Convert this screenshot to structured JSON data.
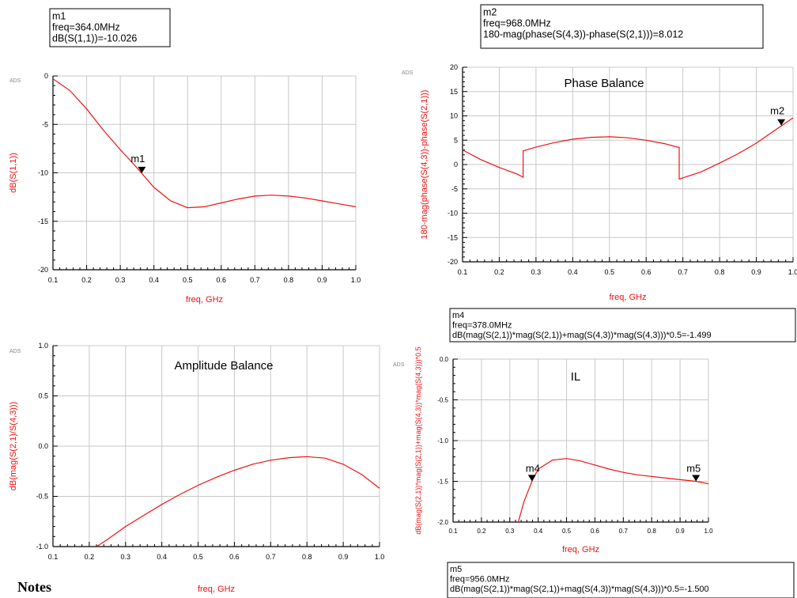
{
  "notes_heading": "Notes",
  "colors": {
    "trace": "#ee1111",
    "grid": "#c8c8c8",
    "axis": "#000000"
  },
  "chart_data": [
    {
      "id": "s11",
      "type": "line",
      "ads_tag": "ADS",
      "title": "",
      "xlabel": "freq, GHz",
      "ylabel": "dB(S(1,1))",
      "xlim": [
        0.1,
        1.0
      ],
      "ylim": [
        -20,
        0
      ],
      "xticks": [
        "0.1",
        "0.2",
        "0.3",
        "0.4",
        "0.5",
        "0.6",
        "0.7",
        "0.8",
        "0.9",
        "1.0"
      ],
      "yticks": [
        "0",
        "-5",
        "-10",
        "-15",
        "-20"
      ],
      "grid": true,
      "series": [
        {
          "x": [
            0.1,
            0.15,
            0.2,
            0.25,
            0.3,
            0.35,
            0.4,
            0.45,
            0.5,
            0.55,
            0.6,
            0.65,
            0.7,
            0.75,
            0.8,
            0.85,
            0.9,
            0.95,
            1.0
          ],
          "y": [
            -0.3,
            -1.5,
            -3.4,
            -5.6,
            -7.6,
            -9.5,
            -11.5,
            -12.9,
            -13.6,
            -13.5,
            -13.1,
            -12.7,
            -12.4,
            -12.3,
            -12.4,
            -12.6,
            -12.9,
            -13.2,
            -13.5
          ]
        }
      ],
      "markers": [
        {
          "name": "m1",
          "x": 0.364,
          "y": -10.026,
          "lines": [
            "m1",
            "freq=364.0MHz",
            "dB(S(1,1))=-10.026"
          ]
        }
      ]
    },
    {
      "id": "phase",
      "type": "line",
      "ads_tag": "ADS",
      "title": "Phase Balance",
      "xlabel": "freq, GHz",
      "ylabel": "180-mag(phase(S(4,3))-phase(S(2,1)))",
      "xlim": [
        0.1,
        1.0
      ],
      "ylim": [
        -20,
        20
      ],
      "xticks": [
        "0.1",
        "0.2",
        "0.3",
        "0.4",
        "0.5",
        "0.6",
        "0.7",
        "0.8",
        "0.9",
        "1.0"
      ],
      "yticks": [
        "20",
        "15",
        "10",
        "5",
        "0",
        "-5",
        "-10",
        "-15",
        "-20"
      ],
      "grid": true,
      "series": [
        {
          "x": [
            0.1,
            0.15,
            0.2,
            0.25,
            0.265,
            0.265,
            0.3,
            0.35,
            0.4,
            0.45,
            0.5,
            0.55,
            0.6,
            0.65,
            0.69,
            0.69,
            0.75,
            0.8,
            0.85,
            0.9,
            0.95,
            1.0
          ],
          "y": [
            3.0,
            1.0,
            -0.6,
            -2.0,
            -2.6,
            2.8,
            3.6,
            4.5,
            5.2,
            5.6,
            5.7,
            5.5,
            5.0,
            4.3,
            3.5,
            -3.0,
            -1.5,
            0.3,
            2.2,
            4.4,
            7.0,
            9.6
          ]
        }
      ],
      "markers": [
        {
          "name": "m2",
          "x": 0.968,
          "y": 8.012,
          "lines": [
            "m2",
            "freq=968.0MHz",
            "180-mag(phase(S(4,3))-phase(S(2,1)))=8.012"
          ]
        }
      ]
    },
    {
      "id": "amp",
      "type": "line",
      "ads_tag": "ADS",
      "title": "Amplitude Balance",
      "xlabel": "freq, GHz",
      "ylabel": "dB(mag(S(2,1)/S(4,3)))",
      "xlim": [
        0.1,
        1.0
      ],
      "ylim": [
        -1.0,
        1.0
      ],
      "xticks": [
        "0.1",
        "0.2",
        "0.3",
        "0.4",
        "0.5",
        "0.6",
        "0.7",
        "0.8",
        "0.9",
        "1.0"
      ],
      "yticks": [
        "1.0",
        "0.5",
        "0.0",
        "-0.5",
        "-1.0"
      ],
      "grid": true,
      "series": [
        {
          "x": [
            0.22,
            0.25,
            0.3,
            0.35,
            0.4,
            0.45,
            0.5,
            0.55,
            0.6,
            0.65,
            0.7,
            0.75,
            0.8,
            0.85,
            0.9,
            0.95,
            1.0
          ],
          "y": [
            -1.0,
            -0.93,
            -0.8,
            -0.69,
            -0.58,
            -0.48,
            -0.39,
            -0.31,
            -0.24,
            -0.18,
            -0.14,
            -0.115,
            -0.105,
            -0.12,
            -0.18,
            -0.28,
            -0.42
          ]
        }
      ],
      "markers": []
    },
    {
      "id": "il",
      "type": "line",
      "ads_tag": "ADS",
      "title": "IL",
      "xlabel": "freq, GHz",
      "ylabel": "dB(mag(S(2,1))*mag(S(2,1))+mag(S(4,3))*mag(S(4,3)))*0.5",
      "xlim": [
        0.1,
        1.0
      ],
      "ylim": [
        -2.0,
        0.0
      ],
      "xticks": [
        "0.1",
        "0.2",
        "0.3",
        "0.4",
        "0.5",
        "0.6",
        "0.7",
        "0.8",
        "0.9",
        "1.0"
      ],
      "yticks": [
        "0.0",
        "-0.5",
        "-1.0",
        "-1.5",
        "-2.0"
      ],
      "grid": true,
      "series": [
        {
          "x": [
            0.33,
            0.35,
            0.378,
            0.4,
            0.45,
            0.5,
            0.55,
            0.6,
            0.65,
            0.7,
            0.75,
            0.8,
            0.85,
            0.9,
            0.956,
            1.0
          ],
          "y": [
            -2.0,
            -1.75,
            -1.499,
            -1.35,
            -1.24,
            -1.22,
            -1.25,
            -1.3,
            -1.35,
            -1.39,
            -1.42,
            -1.44,
            -1.46,
            -1.48,
            -1.5,
            -1.53
          ]
        }
      ],
      "markers": [
        {
          "name": "m4",
          "x": 0.378,
          "y": -1.499,
          "lines": [
            "m4",
            "freq=378.0MHz",
            "dB(mag(S(2,1))*mag(S(2,1))+mag(S(4,3))*mag(S(4,3)))*0.5=-1.499"
          ]
        },
        {
          "name": "m5",
          "x": 0.956,
          "y": -1.5,
          "lines": [
            "m5",
            "freq=956.0MHz",
            "dB(mag(S(2,1))*mag(S(2,1))+mag(S(4,3))*mag(S(4,3)))*0.5=-1.500"
          ]
        }
      ]
    }
  ]
}
